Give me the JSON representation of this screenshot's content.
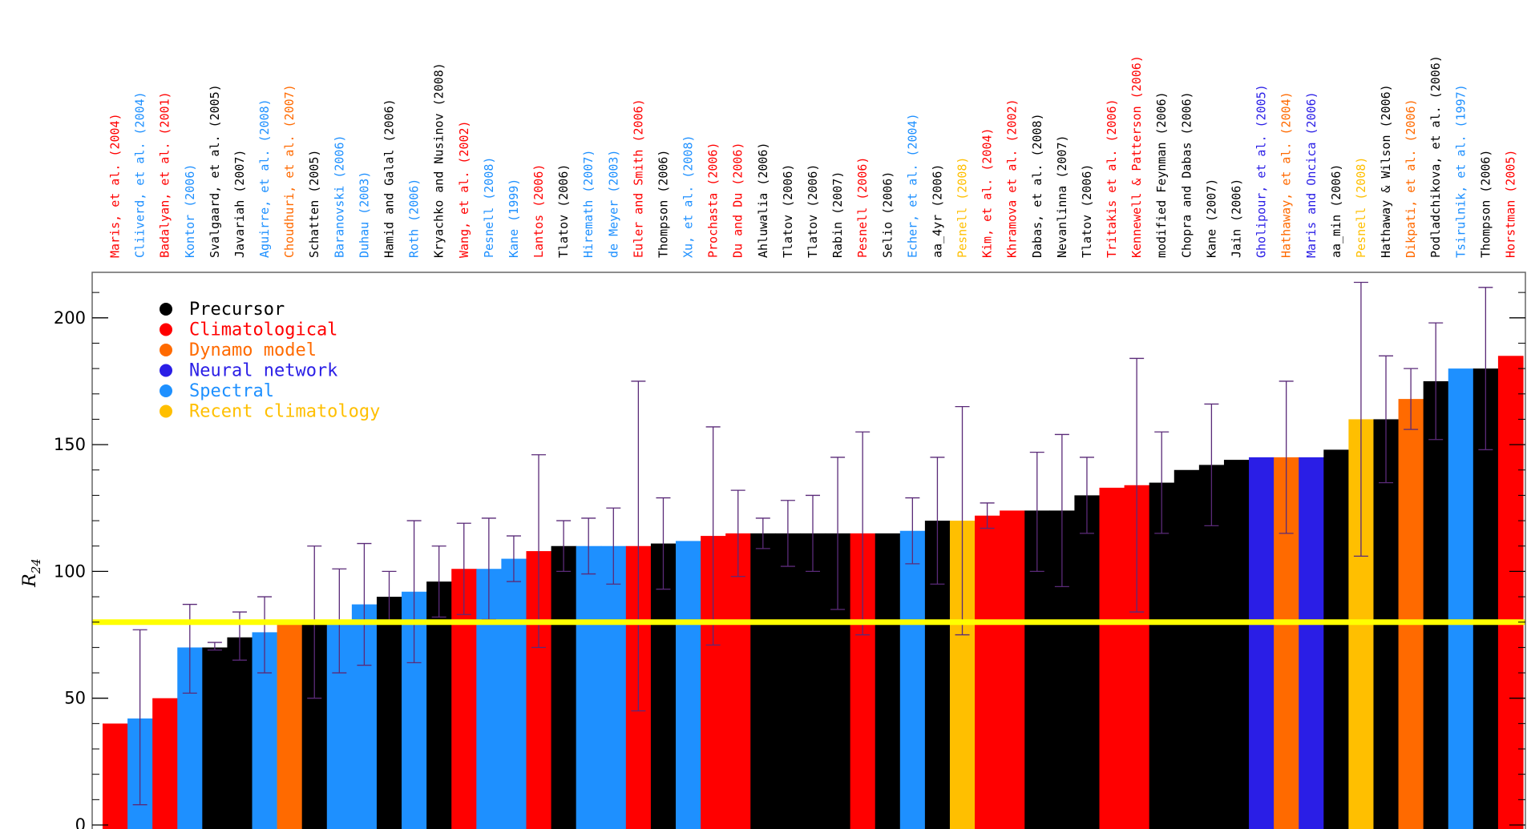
{
  "colors": {
    "Precursor": "#000000",
    "Climatological": "#ff0000",
    "Dynamo model": "#ff6a00",
    "Neural network": "#2a1ee6",
    "Spectral": "#1e90ff",
    "Recent climatology": "#ffbf00",
    "error_bar": "#5a2a78",
    "threshold_line": "#ffff00"
  },
  "chart_data": {
    "type": "bar",
    "ylabel": "R24",
    "ylabel_main": "R",
    "ylabel_sub": "24",
    "ylim": [
      0,
      220
    ],
    "yticks": [
      0,
      50,
      100,
      150,
      200
    ],
    "threshold": 80,
    "legend_position": "top-left",
    "legend": [
      "Precursor",
      "Climatological",
      "Dynamo model",
      "Neural network",
      "Spectral",
      "Recent climatology"
    ],
    "bars": [
      {
        "label": "Maris, et al. (2004)",
        "value": 40,
        "category": "Climatological"
      },
      {
        "label": "Cliiverd, et al. (2004)",
        "value": 42,
        "category": "Spectral",
        "err": [
          8,
          77
        ]
      },
      {
        "label": "Badalyan, et al. (2001)",
        "value": 50,
        "category": "Climatological"
      },
      {
        "label": "Kontor (2006)",
        "value": 70,
        "category": "Spectral",
        "err": [
          52,
          87
        ]
      },
      {
        "label": "Svalgaard, et al. (2005)",
        "value": 70,
        "category": "Precursor",
        "err": [
          69,
          72
        ]
      },
      {
        "label": "Javariah (2007)",
        "value": 74,
        "category": "Precursor",
        "err": [
          65,
          84
        ]
      },
      {
        "label": "Aguirre, et al. (2008)",
        "value": 76,
        "category": "Spectral",
        "err": [
          60,
          90
        ]
      },
      {
        "label": "Choudhuri, et al. (2007)",
        "value": 80,
        "category": "Dynamo model"
      },
      {
        "label": "Schatten (2005)",
        "value": 80,
        "category": "Precursor",
        "err": [
          50,
          110
        ]
      },
      {
        "label": "Baranovski (2006)",
        "value": 80,
        "category": "Spectral",
        "err": [
          60,
          101
        ]
      },
      {
        "label": "Duhau (2003)",
        "value": 87,
        "category": "Spectral",
        "err": [
          63,
          111
        ]
      },
      {
        "label": "Hamid and Galal (2006)",
        "value": 90,
        "category": "Precursor",
        "err": [
          80,
          100
        ]
      },
      {
        "label": "Roth (2006)",
        "value": 92,
        "category": "Spectral",
        "err": [
          64,
          120
        ]
      },
      {
        "label": "Kryachko and Nusinov (2008)",
        "value": 96,
        "category": "Precursor",
        "err": [
          82,
          110
        ]
      },
      {
        "label": "Wang, et al. (2002)",
        "value": 101,
        "category": "Climatological",
        "err": [
          83,
          119
        ]
      },
      {
        "label": "Pesnell (2008)",
        "value": 101,
        "category": "Spectral",
        "err": [
          81,
          121
        ]
      },
      {
        "label": "Kane (1999)",
        "value": 105,
        "category": "Spectral",
        "err": [
          96,
          114
        ]
      },
      {
        "label": "Lantos (2006)",
        "value": 108,
        "category": "Climatological",
        "err": [
          70,
          146
        ]
      },
      {
        "label": "Tlatov (2006)",
        "value": 110,
        "category": "Precursor",
        "err": [
          100,
          120
        ]
      },
      {
        "label": "Hiremath (2007)",
        "value": 110,
        "category": "Spectral",
        "err": [
          99,
          121
        ]
      },
      {
        "label": "de Meyer (2003)",
        "value": 110,
        "category": "Spectral",
        "err": [
          95,
          125
        ]
      },
      {
        "label": "Euler and Smith (2006)",
        "value": 110,
        "category": "Climatological",
        "err": [
          45,
          175
        ]
      },
      {
        "label": "Thompson (2006)",
        "value": 111,
        "category": "Precursor",
        "err": [
          93,
          129
        ]
      },
      {
        "label": "Xu, et al. (2008)",
        "value": 112,
        "category": "Spectral"
      },
      {
        "label": "Prochasta (2006)",
        "value": 114,
        "category": "Climatological",
        "err": [
          71,
          157
        ]
      },
      {
        "label": "Du and Du (2006)",
        "value": 115,
        "category": "Climatological",
        "err": [
          98,
          132
        ]
      },
      {
        "label": "Ahluwalia (2006)",
        "value": 115,
        "category": "Precursor",
        "err": [
          109,
          121
        ]
      },
      {
        "label": "Tlatov (2006)",
        "value": 115,
        "category": "Precursor",
        "err": [
          102,
          128
        ]
      },
      {
        "label": "Tlatov (2006)",
        "value": 115,
        "category": "Precursor",
        "err": [
          100,
          130
        ]
      },
      {
        "label": "Rabin (2007)",
        "value": 115,
        "category": "Precursor",
        "err": [
          85,
          145
        ]
      },
      {
        "label": "Pesnell (2006)",
        "value": 115,
        "category": "Climatological",
        "err": [
          75,
          155
        ]
      },
      {
        "label": "Selio (2006)",
        "value": 115,
        "category": "Precursor"
      },
      {
        "label": "Echer, et al. (2004)",
        "value": 116,
        "category": "Spectral",
        "err": [
          103,
          129
        ]
      },
      {
        "label": "aa_4yr (2006)",
        "value": 120,
        "category": "Precursor",
        "err": [
          95,
          145
        ]
      },
      {
        "label": "Pesnell (2008)",
        "value": 120,
        "category": "Recent climatology",
        "err": [
          75,
          165
        ]
      },
      {
        "label": "Kim, et al. (2004)",
        "value": 122,
        "category": "Climatological",
        "err": [
          117,
          127
        ]
      },
      {
        "label": "Khramova et al. (2002)",
        "value": 124,
        "category": "Climatological"
      },
      {
        "label": "Dabas, et al. (2008)",
        "value": 124,
        "category": "Precursor",
        "err": [
          100,
          147
        ]
      },
      {
        "label": "Nevanlinna (2007)",
        "value": 124,
        "category": "Precursor",
        "err": [
          94,
          154
        ]
      },
      {
        "label": "Tlatov (2006)",
        "value": 130,
        "category": "Precursor",
        "err": [
          115,
          145
        ]
      },
      {
        "label": "Tritakis et al. (2006)",
        "value": 133,
        "category": "Climatological"
      },
      {
        "label": "Kennewell & Patterson (2006)",
        "value": 134,
        "category": "Climatological",
        "err": [
          84,
          184
        ]
      },
      {
        "label": "modified Feynman (2006)",
        "value": 135,
        "category": "Precursor",
        "err": [
          115,
          155
        ]
      },
      {
        "label": "Chopra and Dabas (2006)",
        "value": 140,
        "category": "Precursor"
      },
      {
        "label": "Kane (2007)",
        "value": 142,
        "category": "Precursor",
        "err": [
          118,
          166
        ]
      },
      {
        "label": "Jain (2006)",
        "value": 144,
        "category": "Precursor"
      },
      {
        "label": "Gholipour, et al. (2005)",
        "value": 145,
        "category": "Neural network"
      },
      {
        "label": "Hathaway, et al. (2004)",
        "value": 145,
        "category": "Dynamo model",
        "err": [
          115,
          175
        ]
      },
      {
        "label": "Maris and Oncica (2006)",
        "value": 145,
        "category": "Neural network"
      },
      {
        "label": "aa_min (2006)",
        "value": 148,
        "category": "Precursor"
      },
      {
        "label": "Pesnell (2008)",
        "value": 160,
        "category": "Recent climatology",
        "err": [
          106,
          214
        ]
      },
      {
        "label": "Hathaway & Wilson (2006)",
        "value": 160,
        "category": "Precursor",
        "err": [
          135,
          185
        ]
      },
      {
        "label": "Dikpati, et al. (2006)",
        "value": 168,
        "category": "Dynamo model",
        "err": [
          156,
          180
        ]
      },
      {
        "label": "Podladchikova, et al. (2006)",
        "value": 175,
        "category": "Precursor",
        "err": [
          152,
          198
        ]
      },
      {
        "label": "Tsirulnik, et al. (1997)",
        "value": 180,
        "category": "Spectral"
      },
      {
        "label": "Thompson (2006)",
        "value": 180,
        "category": "Precursor",
        "err": [
          148,
          212
        ]
      },
      {
        "label": "Horstman (2005)",
        "value": 185,
        "category": "Climatological"
      }
    ]
  }
}
